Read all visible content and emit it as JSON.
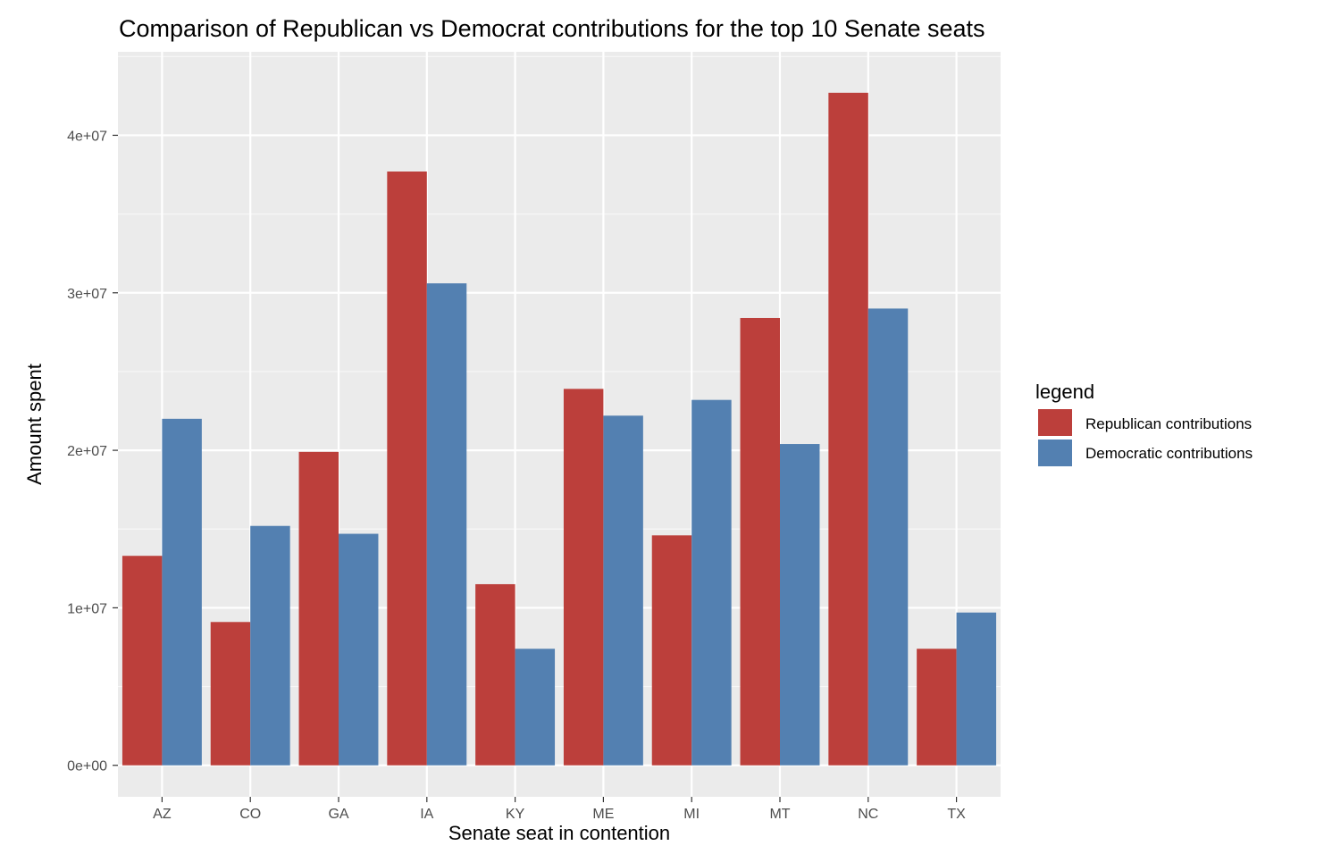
{
  "chart_data": {
    "type": "bar",
    "title": "Comparison of Republican vs Democrat contributions for the top 10 Senate seats",
    "xlabel": "Senate seat in contention",
    "ylabel": "Amount spent",
    "categories": [
      "AZ",
      "CO",
      "GA",
      "IA",
      "KY",
      "ME",
      "MI",
      "MT",
      "NC",
      "TX"
    ],
    "series": [
      {
        "name": "Republican contributions",
        "color": "#BC3F3B",
        "values": [
          13300000,
          9100000,
          19900000,
          37700000,
          11500000,
          23900000,
          14600000,
          28400000,
          42700000,
          7400000
        ]
      },
      {
        "name": "Democratic contributions",
        "color": "#5380B1",
        "values": [
          22000000,
          15200000,
          14700000,
          30600000,
          7400000,
          22200000,
          23200000,
          20400000,
          29000000,
          9700000
        ]
      }
    ],
    "ylim": [
      -2000000,
      45300000
    ],
    "yticks": [
      0,
      10000000,
      20000000,
      30000000,
      40000000
    ],
    "ytick_labels": [
      "0e+00",
      "1e+07",
      "2e+07",
      "3e+07",
      "4e+07"
    ],
    "grid": true,
    "panel_background": "#EBEBEB",
    "legend": {
      "title": "legend",
      "position": "right"
    }
  }
}
